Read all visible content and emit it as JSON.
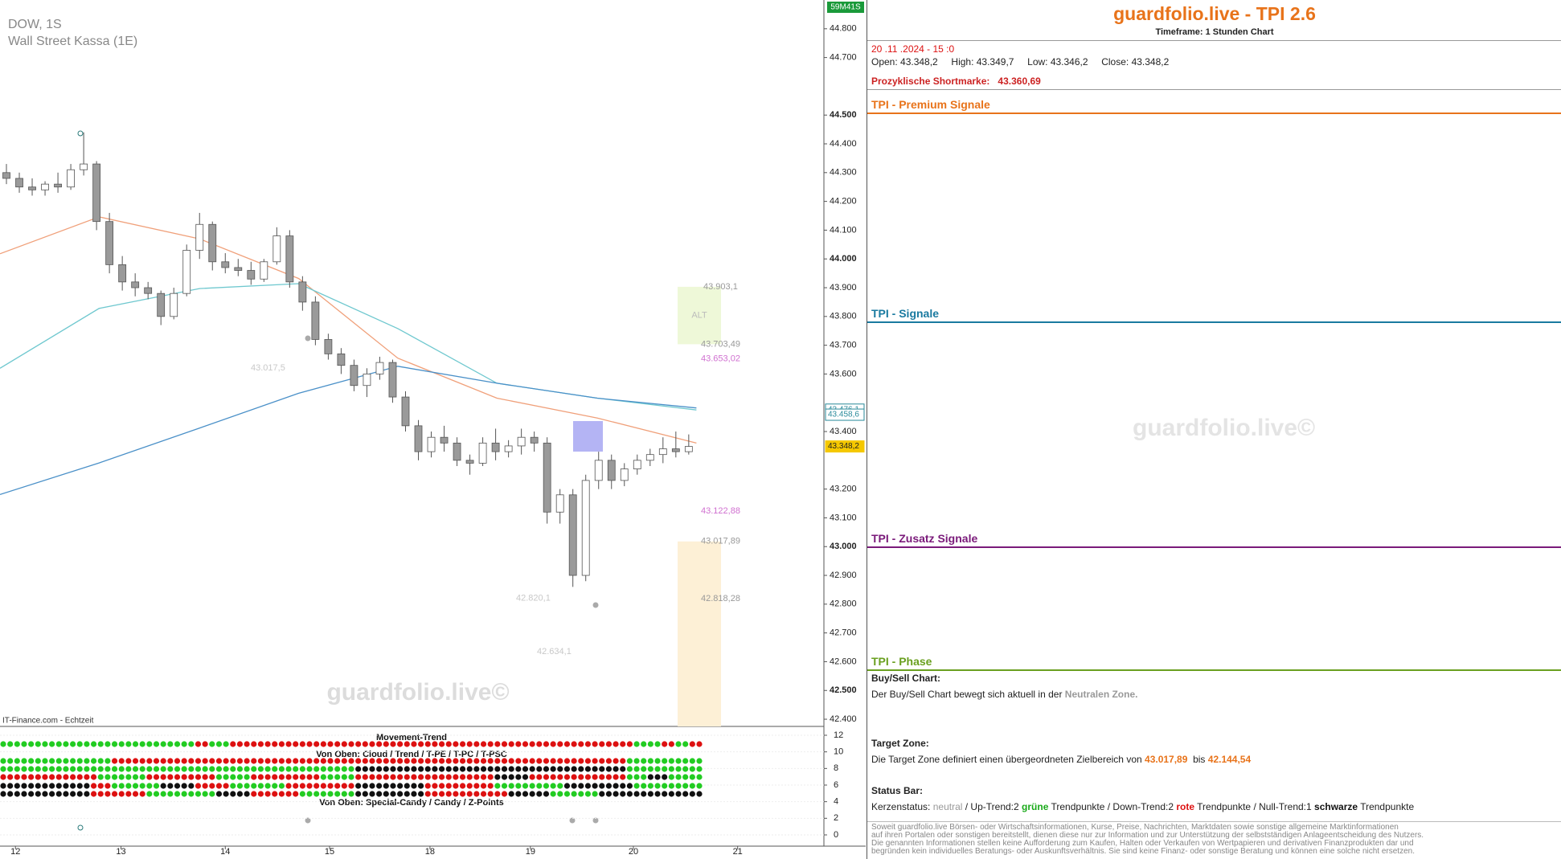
{
  "chart_data": {
    "type": "candlestick",
    "title": "DOW, 1S",
    "subtitle": "Wall Street Kassa (1E)",
    "watermark": "guardfolio.live©",
    "source": "IT-Finance.com - Echtzeit",
    "countdown": "59M41S",
    "zone_label": "ALT",
    "up_color": "#ffffff",
    "down_color": "#9a9a9a",
    "stroke": "#555555",
    "open": [
      44300,
      44280,
      44250,
      44240,
      44260,
      44250,
      44310,
      44330,
      44130,
      43980,
      43920,
      43900,
      43880,
      43800,
      43880,
      44030,
      44120,
      43990,
      43970,
      43960,
      43930,
      43990,
      44080,
      43920,
      43850,
      43720,
      43670,
      43630,
      43560,
      43600,
      43640,
      43520,
      43420,
      43330,
      43380,
      43360,
      43300,
      43290,
      43360,
      43330,
      43350,
      43380,
      43360,
      43120,
      43180,
      42900,
      43230,
      43300,
      43230,
      43270,
      43300,
      43320,
      43340,
      43330
    ],
    "high": [
      44330,
      44300,
      44280,
      44270,
      44300,
      44330,
      44440,
      44340,
      44160,
      44010,
      43950,
      43920,
      43890,
      43900,
      44050,
      44160,
      44130,
      44020,
      44000,
      43990,
      44000,
      44110,
      44100,
      43940,
      43870,
      43740,
      43690,
      43650,
      43620,
      43660,
      43650,
      43540,
      43440,
      43400,
      43420,
      43380,
      43320,
      43380,
      43410,
      43370,
      43410,
      43400,
      43380,
      43200,
      43200,
      43250,
      43330,
      43320,
      43290,
      43320,
      43340,
      43380,
      43400,
      43390
    ],
    "low": [
      44260,
      44230,
      44220,
      44220,
      44230,
      44240,
      44290,
      44100,
      43950,
      43890,
      43870,
      43860,
      43770,
      43790,
      43870,
      44000,
      43960,
      43950,
      43940,
      43910,
      43920,
      43980,
      43900,
      43820,
      43700,
      43650,
      43600,
      43540,
      43520,
      43580,
      43500,
      43400,
      43300,
      43310,
      43330,
      43280,
      43250,
      43280,
      43300,
      43310,
      43320,
      43330,
      43080,
      43080,
      42860,
      42880,
      43200,
      43200,
      43210,
      43250,
      43280,
      43290,
      43310,
      43320
    ],
    "close": [
      44280,
      44250,
      44240,
      44260,
      44250,
      44310,
      44330,
      44130,
      43980,
      43920,
      43900,
      43880,
      43800,
      43880,
      44030,
      44120,
      43990,
      43970,
      43960,
      43930,
      43990,
      44080,
      43920,
      43850,
      43720,
      43670,
      43630,
      43560,
      43600,
      43640,
      43520,
      43420,
      43330,
      43380,
      43360,
      43300,
      43290,
      43360,
      43330,
      43350,
      43380,
      43360,
      43120,
      43180,
      42900,
      43230,
      43300,
      43230,
      43270,
      43300,
      43320,
      43340,
      43330,
      43348.2
    ],
    "lines": [
      {
        "color": "#f0a07a",
        "x": [
          0,
          7.7,
          15.5,
          23.2,
          30.9,
          38.6,
          46.4,
          54.1
        ],
        "values": [
          44018,
          44146,
          44070,
          43932,
          43655,
          43516,
          43447,
          43360
        ]
      },
      {
        "color": "#6fc8cf",
        "x": [
          0,
          7.7,
          15.5,
          23.2,
          30.9,
          38.6,
          46.4,
          54.1
        ],
        "values": [
          43620,
          43828,
          43897,
          43914,
          43758,
          43568,
          43516,
          43475
        ]
      },
      {
        "color": "#4a90c8",
        "x": [
          0,
          7.7,
          15.5,
          23.2,
          30.9,
          38.6,
          46.4,
          54.1
        ],
        "values": [
          43181,
          43291,
          43412,
          43533,
          43627,
          43568,
          43516,
          43482
        ]
      }
    ],
    "xlim": [
      0,
      64
    ],
    "xticks": [
      {
        "value": 1.2,
        "label": "12"
      },
      {
        "value": 9.4,
        "label": "13"
      },
      {
        "value": 17.5,
        "label": "14"
      },
      {
        "value": 25.6,
        "label": "15"
      },
      {
        "value": 33.4,
        "label": "18"
      },
      {
        "value": 41.2,
        "label": "19"
      },
      {
        "value": 49.2,
        "label": "20"
      },
      {
        "value": 57.3,
        "label": "21"
      }
    ],
    "ylim": [
      42375,
      44900
    ],
    "yticks": [
      {
        "value": 44800,
        "label": "44.800"
      },
      {
        "value": 44700,
        "label": "44.700"
      },
      {
        "value": 44500,
        "label": "44.500"
      },
      {
        "value": 44400,
        "label": "44.400"
      },
      {
        "value": 44300,
        "label": "44.300"
      },
      {
        "value": 44200,
        "label": "44.200"
      },
      {
        "value": 44100,
        "label": "44.100"
      },
      {
        "value": 44000,
        "label": "44.000"
      },
      {
        "value": 43900,
        "label": "43.900"
      },
      {
        "value": 43800,
        "label": "43.800"
      },
      {
        "value": 43700,
        "label": "43.700"
      },
      {
        "value": 43600,
        "label": "43.600"
      },
      {
        "value": 43400,
        "label": "43.400"
      },
      {
        "value": 43200,
        "label": "43.200"
      },
      {
        "value": 43100,
        "label": "43.100"
      },
      {
        "value": 43000,
        "label": "43.000"
      },
      {
        "value": 42900,
        "label": "42.900"
      },
      {
        "value": 42800,
        "label": "42.800"
      },
      {
        "value": 42700,
        "label": "42.700"
      },
      {
        "value": 42600,
        "label": "42.600"
      },
      {
        "value": 42500,
        "label": "42.500"
      },
      {
        "value": 42400,
        "label": "42.400"
      }
    ],
    "price_tags": [
      {
        "value": 43476.1,
        "label": "43.476,1",
        "color": "#2a8a9a"
      },
      {
        "value": 43458.6,
        "label": "43.458,6",
        "color": "#2a8a9a"
      },
      {
        "value": 43348.2,
        "label": "43.348,2",
        "color": "#f5c800"
      }
    ],
    "annotations": [
      {
        "value": 43903.1,
        "label": "43.903,1",
        "color": "#999999"
      },
      {
        "value": 43703.49,
        "label": "43.703,49",
        "color": "#999999"
      },
      {
        "value": 43653.02,
        "label": "43.653,02",
        "color": "#d070d0"
      },
      {
        "value": 43122.88,
        "label": "43.122,88",
        "color": "#d070d0"
      },
      {
        "value": 43017.89,
        "label": "43.017,89",
        "color": "#999999"
      },
      {
        "value": 42818.28,
        "label": "42.818,28",
        "color": "#999999"
      },
      {
        "value": 42820.1,
        "label": "42.820,1",
        "color": "#c8c8c8"
      },
      {
        "value": 42634.1,
        "label": "42.634,1",
        "color": "#c8c8c8"
      }
    ],
    "notes": [
      "43.017,5"
    ],
    "indicator": {
      "title": "Movement-Trend",
      "label_top": "Von Oben: Cloud / Trend / T-PE / T-PC / T-PSC",
      "label_bottom": "Von Oben: Special-Candy / Candy / Z-Points",
      "ylim": [
        0,
        12
      ],
      "yticks": [
        12,
        10,
        8,
        6,
        4,
        2,
        0
      ]
    }
  },
  "panel": {
    "title": "guardfolio.live - TPI 2.6",
    "timeframe": "Timeframe: 1 Stunden Chart",
    "datetime": "20 .11 .2024 - 15 :0",
    "ohlc": [
      "Open: 43.348,2",
      "High: 43.349,7",
      "Low: 43.346,2",
      "Close: 43.348,2"
    ],
    "shortmarke": {
      "label": "Prozyklische Shortmarke:",
      "value": "43.360,69"
    },
    "sections": [
      {
        "title": "TPI - Premium Signale",
        "color": "#e8731a"
      },
      {
        "title": "TPI - Signale",
        "color": "#1a7aa0"
      },
      {
        "title": "TPI - Zusatz Signale",
        "color": "#7a1a7a"
      },
      {
        "title": "TPI - Phase",
        "color": "#6aa020"
      }
    ],
    "watermark": "guardfolio.live©",
    "buysell": {
      "title": "Buy/Sell Chart:",
      "text": "Der Buy/Sell Chart bewegt sich aktuell in der",
      "zone": "Neutralen Zone."
    },
    "target": {
      "title": "Target Zone:",
      "text": "Die Target Zone definiert einen übergeordneten Zielbereich von",
      "from": "43.017,89",
      "sep": "bis",
      "to": "42.144,54"
    },
    "status": {
      "title": "Status Bar:",
      "parts": [
        {
          "text": "Kerzenstatus:",
          "color": "#222222",
          "bold": false
        },
        {
          "text": "neutral",
          "color": "#999999",
          "bold": false
        },
        {
          "text": "/ Up-Trend:2",
          "color": "#222222",
          "bold": false
        },
        {
          "text": "grüne",
          "color": "#1aaa1a",
          "bold": true
        },
        {
          "text": "Trendpunkte  / Down-Trend:2",
          "color": "#222222",
          "bold": false
        },
        {
          "text": "rote",
          "color": "#dd1111",
          "bold": true
        },
        {
          "text": "Trendpunkte / Null-Trend:1",
          "color": "#222222",
          "bold": false
        },
        {
          "text": "schwarze",
          "color": "#111111",
          "bold": true
        },
        {
          "text": "Trendpunkte",
          "color": "#222222",
          "bold": false
        }
      ]
    },
    "disclaimer": [
      "Soweit guardfolio.live Börsen- oder Wirtschaftsinformationen, Kurse, Preise, Nachrichten, Marktdaten sowie sonstige allgemeine Marktinformationen",
      "auf ihren Portalen oder sonstigen bereitstellt, dienen diese nur zur Information und zur Unterstützung der selbstständigen Anlageentscheidung des Nutzers.",
      "Die genannten Informationen stellen keine Aufforderung zum Kaufen, Halten oder Verkaufen von Wertpapieren und derivativen Finanzprodukten dar und",
      "begründen kein individuelles Beratungs- oder Auskunftsverhältnis. Sie sind keine Finanz- oder sonstige Beratung und können eine solche nicht ersetzen."
    ]
  }
}
